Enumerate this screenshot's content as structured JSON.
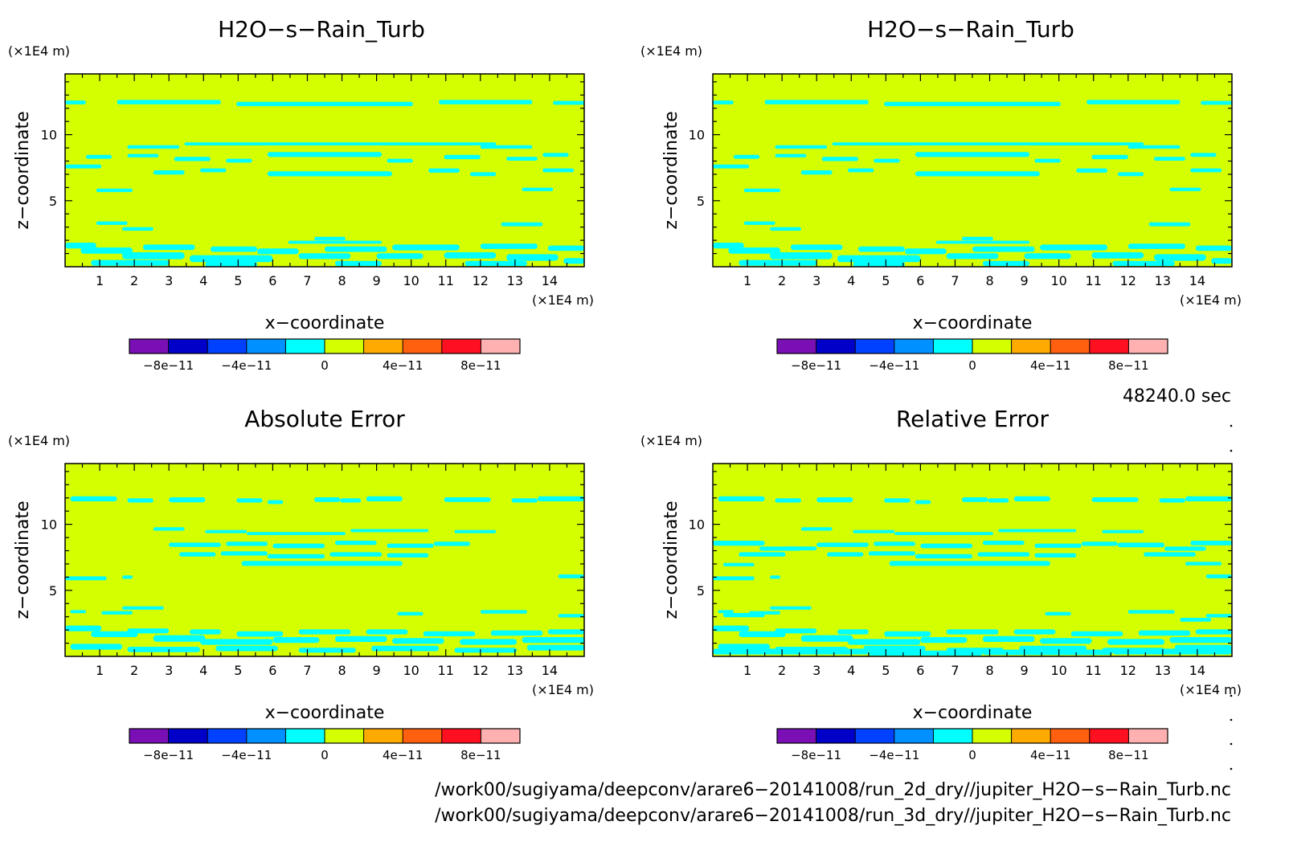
{
  "chart_data": [
    {
      "type": "heatmap",
      "title": "H2O−s−Rain_Turb",
      "xlabel": "x−coordinate",
      "ylabel": "z−coordinate",
      "x_unit": "(×1E4 m)",
      "y_unit": "(×1E4 m)",
      "xlim": [
        0,
        15
      ],
      "ylim": [
        0,
        14.6
      ],
      "xticks": [
        "1",
        "2",
        "3",
        "4",
        "5",
        "6",
        "7",
        "8",
        "9",
        "10",
        "11",
        "12",
        "13",
        "14"
      ],
      "yticks": [
        "5",
        "10"
      ],
      "background_color": "#d4ff00",
      "feature_color": "#00ffff",
      "pattern": "field",
      "colorbar": {
        "colors": [
          "#7a0fb5",
          "#0000c8",
          "#0040ff",
          "#0090ff",
          "#00ffff",
          "#d4ff00",
          "#ffaa00",
          "#ff6010",
          "#ff1020",
          "#ffb0b0"
        ],
        "labels": [
          "−8e−11",
          "−4e−11",
          "0",
          "4e−11",
          "8e−11"
        ]
      }
    },
    {
      "type": "heatmap",
      "title": "H2O−s−Rain_Turb",
      "xlabel": "x−coordinate",
      "ylabel": "z−coordinate",
      "x_unit": "(×1E4 m)",
      "y_unit": "(×1E4 m)",
      "xlim": [
        0,
        15
      ],
      "ylim": [
        0,
        14.6
      ],
      "xticks": [
        "1",
        "2",
        "3",
        "4",
        "5",
        "6",
        "7",
        "8",
        "9",
        "10",
        "11",
        "12",
        "13",
        "14"
      ],
      "yticks": [
        "5",
        "10"
      ],
      "background_color": "#d4ff00",
      "feature_color": "#00ffff",
      "pattern": "field",
      "colorbar": {
        "colors": [
          "#7a0fb5",
          "#0000c8",
          "#0040ff",
          "#0090ff",
          "#00ffff",
          "#d4ff00",
          "#ffaa00",
          "#ff6010",
          "#ff1020",
          "#ffb0b0"
        ],
        "labels": [
          "−8e−11",
          "−4e−11",
          "0",
          "4e−11",
          "8e−11"
        ]
      }
    },
    {
      "type": "heatmap",
      "title": "Absolute Error",
      "xlabel": "x−coordinate",
      "ylabel": "z−coordinate",
      "x_unit": "(×1E4 m)",
      "y_unit": "(×1E4 m)",
      "xlim": [
        0,
        15
      ],
      "ylim": [
        0,
        14.6
      ],
      "xticks": [
        "1",
        "2",
        "3",
        "4",
        "5",
        "6",
        "7",
        "8",
        "9",
        "10",
        "11",
        "12",
        "13",
        "14"
      ],
      "yticks": [
        "5",
        "10"
      ],
      "background_color": "#d4ff00",
      "feature_color": "#00ffff",
      "pattern": "abs",
      "colorbar": {
        "colors": [
          "#7a0fb5",
          "#0000c8",
          "#0040ff",
          "#0090ff",
          "#00ffff",
          "#d4ff00",
          "#ffaa00",
          "#ff6010",
          "#ff1020",
          "#ffb0b0"
        ],
        "labels": [
          "−8e−11",
          "−4e−11",
          "0",
          "4e−11",
          "8e−11"
        ]
      }
    },
    {
      "type": "heatmap",
      "title": "Relative Error",
      "xlabel": "x−coordinate",
      "ylabel": "z−coordinate",
      "x_unit": "(×1E4 m)",
      "y_unit": "(×1E4 m)",
      "xlim": [
        0,
        15
      ],
      "ylim": [
        0,
        14.6
      ],
      "xticks": [
        "1",
        "2",
        "3",
        "4",
        "5",
        "6",
        "7",
        "8",
        "9",
        "10",
        "11",
        "12",
        "13",
        "14"
      ],
      "yticks": [
        "5",
        "10"
      ],
      "background_color": "#d4ff00",
      "feature_color": "#00ffff",
      "pattern": "rel",
      "colorbar": {
        "colors": [
          "#7a0fb5",
          "#0000c8",
          "#0040ff",
          "#0090ff",
          "#00ffff",
          "#d4ff00",
          "#ffaa00",
          "#ff6010",
          "#ff1020",
          "#ffb0b0"
        ],
        "labels": [
          "−8e−11",
          "−4e−11",
          "0",
          "4e−11",
          "8e−11"
        ]
      }
    }
  ],
  "time_label": "48240.0 sec",
  "footer": {
    "path1": "/work00/sugiyama/deepconv/arare6−20141008/run_2d_dry//jupiter_H2O−s−Rain_Turb.nc",
    "path2": "/work00/sugiyama/deepconv/arare6−20141008/run_3d_dry//jupiter_H2O−s−Rain_Turb.nc"
  }
}
